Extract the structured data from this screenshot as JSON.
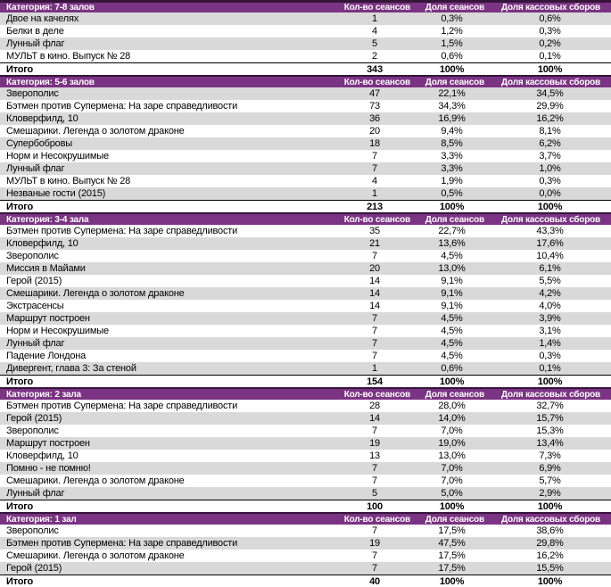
{
  "columns": {
    "sessions": "Кол-во сеансов",
    "share_sessions": "Доля сеансов",
    "share_boxoffice": "Доля кассовых сборов"
  },
  "total_label": "Итого",
  "total_pct": "100%",
  "colors": {
    "header_bg": "#7b3383",
    "header_border": "#341539",
    "stripe": "#d9d9d9",
    "total_border": "#000000"
  },
  "sections": [
    {
      "category": "Категория: 7-8 залов",
      "first_row_shaded": true,
      "rows": [
        [
          "Двое на качелях",
          "1",
          "0,3%",
          "0,6%"
        ],
        [
          "Белки в деле",
          "4",
          "1,2%",
          "0,3%"
        ],
        [
          "Лунный флаг",
          "5",
          "1,5%",
          "0,2%"
        ],
        [
          "МУЛЬТ в кино. Выпуск № 28",
          "2",
          "0,6%",
          "0,1%"
        ]
      ],
      "total": [
        "Итого",
        "343",
        "100%",
        "100%"
      ]
    },
    {
      "category": "Категория: 5-6 залов",
      "first_row_shaded": true,
      "rows": [
        [
          "Зверополис",
          "47",
          "22,1%",
          "34,5%"
        ],
        [
          "Бэтмен против Супермена: На заре справедливости",
          "73",
          "34,3%",
          "29,9%"
        ],
        [
          "Кловерфилд, 10",
          "36",
          "16,9%",
          "16,2%"
        ],
        [
          "Смешарики. Легенда о золотом драконе",
          "20",
          "9,4%",
          "8,1%"
        ],
        [
          "Супербобровы",
          "18",
          "8,5%",
          "6,2%"
        ],
        [
          "Норм и Несокрушимые",
          "7",
          "3,3%",
          "3,7%"
        ],
        [
          "Лунный флаг",
          "7",
          "3,3%",
          "1,0%"
        ],
        [
          "МУЛЬТ в кино. Выпуск № 28",
          "4",
          "1,9%",
          "0,3%"
        ],
        [
          "Незваные гости (2015)",
          "1",
          "0,5%",
          "0,0%"
        ]
      ],
      "total": [
        "Итого",
        "213",
        "100%",
        "100%"
      ]
    },
    {
      "category": "Категория: 3-4 зала",
      "first_row_shaded": false,
      "rows": [
        [
          "Бэтмен против Супермена: На заре справедливости",
          "35",
          "22,7%",
          "43,3%"
        ],
        [
          "Кловерфилд, 10",
          "21",
          "13,6%",
          "17,6%"
        ],
        [
          "Зверополис",
          "7",
          "4,5%",
          "10,4%"
        ],
        [
          "Миссия в Майами",
          "20",
          "13,0%",
          "6,1%"
        ],
        [
          "Герой (2015)",
          "14",
          "9,1%",
          "5,5%"
        ],
        [
          "Смешарики. Легенда о золотом драконе",
          "14",
          "9,1%",
          "4,2%"
        ],
        [
          "Экстрасенсы",
          "14",
          "9,1%",
          "4,0%"
        ],
        [
          "Маршрут построен",
          "7",
          "4,5%",
          "3,9%"
        ],
        [
          "Норм и Несокрушимые",
          "7",
          "4,5%",
          "3,1%"
        ],
        [
          "Лунный флаг",
          "7",
          "4,5%",
          "1,4%"
        ],
        [
          "Падение Лондона",
          "7",
          "4,5%",
          "0,3%"
        ],
        [
          "Дивергент, глава 3: За стеной",
          "1",
          "0,6%",
          "0,1%"
        ]
      ],
      "total": [
        "Итого",
        "154",
        "100%",
        "100%"
      ]
    },
    {
      "category": "Категория: 2 зала",
      "first_row_shaded": false,
      "rows": [
        [
          "Бэтмен против Супермена: На заре справедливости",
          "28",
          "28,0%",
          "32,7%"
        ],
        [
          "Герой (2015)",
          "14",
          "14,0%",
          "15,7%"
        ],
        [
          "Зверополис",
          "7",
          "7,0%",
          "15,3%"
        ],
        [
          "Маршрут построен",
          "19",
          "19,0%",
          "13,4%"
        ],
        [
          "Кловерфилд, 10",
          "13",
          "13,0%",
          "7,3%"
        ],
        [
          "Помню - не помню!",
          "7",
          "7,0%",
          "6,9%"
        ],
        [
          "Смешарики. Легенда о золотом драконе",
          "7",
          "7,0%",
          "5,7%"
        ],
        [
          "Лунный флаг",
          "5",
          "5,0%",
          "2,9%"
        ]
      ],
      "total": [
        "Итого",
        "100",
        "100%",
        "100%"
      ]
    },
    {
      "category": "Категория: 1 зал",
      "first_row_shaded": false,
      "rows": [
        [
          "Зверополис",
          "7",
          "17,5%",
          "38,6%"
        ],
        [
          "Бэтмен против Супермена: На заре справедливости",
          "19",
          "47,5%",
          "29,8%"
        ],
        [
          "Смешарики. Легенда о золотом драконе",
          "7",
          "17,5%",
          "16,2%"
        ],
        [
          "Герой (2015)",
          "7",
          "17,5%",
          "15,5%"
        ]
      ],
      "total": [
        "Итого",
        "40",
        "100%",
        "100%"
      ]
    }
  ]
}
